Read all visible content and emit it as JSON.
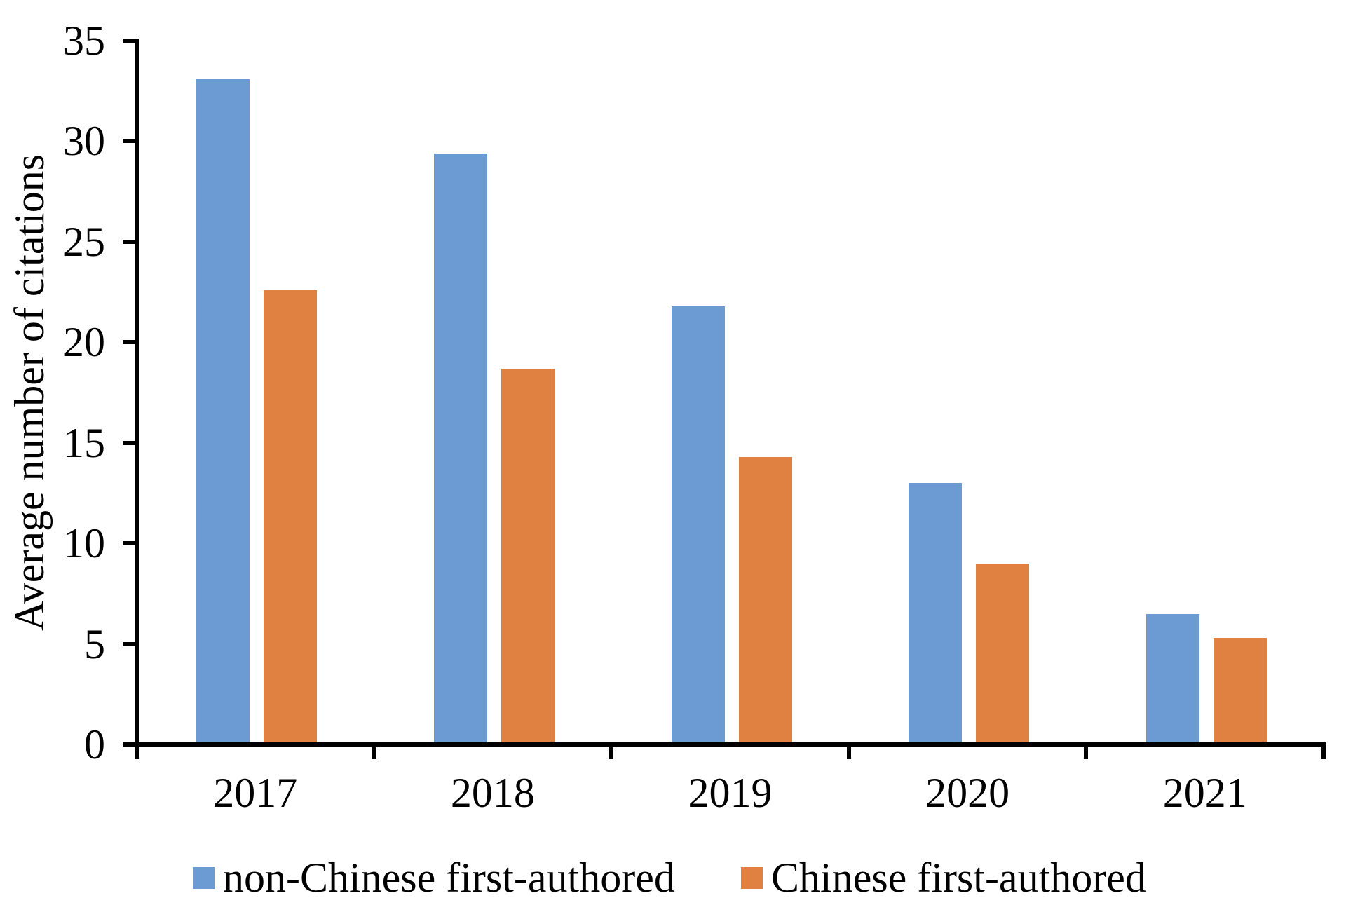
{
  "chart_data": {
    "type": "bar",
    "title": "",
    "xlabel": "",
    "ylabel": "Average number of citations",
    "categories": [
      "2017",
      "2018",
      "2019",
      "2020",
      "2021"
    ],
    "series": [
      {
        "name": "non-Chinese first-authored",
        "color": "#6B9BD2",
        "values": [
          33.1,
          29.4,
          21.8,
          13.0,
          6.5
        ]
      },
      {
        "name": "Chinese first-authored",
        "color": "#E08142",
        "values": [
          22.6,
          18.7,
          14.3,
          9.0,
          5.3
        ]
      }
    ],
    "ylim": [
      0,
      35
    ],
    "yticks": [
      0,
      5,
      10,
      15,
      20,
      25,
      30,
      35
    ],
    "grid": false,
    "legend_position": "bottom",
    "axis_color": "#000000"
  }
}
